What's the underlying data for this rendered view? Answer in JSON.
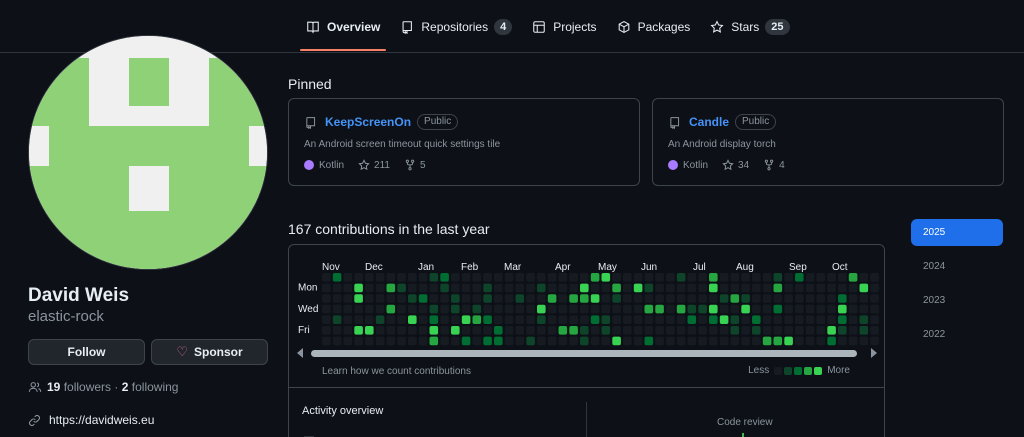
{
  "nav": {
    "tabs": [
      {
        "label": "Overview",
        "icon": "book-icon",
        "active": true
      },
      {
        "label": "Repositories",
        "icon": "repo-icon",
        "count": "4"
      },
      {
        "label": "Projects",
        "icon": "table-icon"
      },
      {
        "label": "Packages",
        "icon": "package-icon"
      },
      {
        "label": "Stars",
        "icon": "star-icon",
        "count": "25"
      }
    ]
  },
  "profile": {
    "name": "David Weis",
    "login": "elastic-rock",
    "follow_label": "Follow",
    "sponsor_label": "Sponsor",
    "followers_count": "19",
    "followers_label": "followers",
    "separator": "·",
    "following_count": "2",
    "following_label": "following",
    "website": "https://davidweis.eu",
    "avatar_colors": {
      "fg": "#8fd177",
      "bg": "#f0f0f0"
    }
  },
  "pinned": {
    "title": "Pinned",
    "repos": [
      {
        "name": "KeepScreenOn",
        "visibility": "Public",
        "description": "An Android screen timeout quick settings tile",
        "language": "Kotlin",
        "language_color": "#a97bff",
        "stars": "211",
        "forks": "5"
      },
      {
        "name": "Candle",
        "visibility": "Public",
        "description": "An Android display torch",
        "language": "Kotlin",
        "language_color": "#a97bff",
        "stars": "34",
        "forks": "4"
      }
    ]
  },
  "contributions": {
    "title": "167 contributions in the last year",
    "months": [
      "Nov",
      "Dec",
      "Jan",
      "Feb",
      "Mar",
      "Apr",
      "May",
      "Jun",
      "Jul",
      "Aug",
      "Sep",
      "Oct"
    ],
    "days": [
      "Mon",
      "Wed",
      "Fri"
    ],
    "learn_label": "Learn how we count contributions",
    "legend_less": "Less",
    "legend_more": "More",
    "level_colors": [
      "#161b22",
      "#0e4429",
      "#006d32",
      "#26a641",
      "#39d353"
    ]
  },
  "activity": {
    "title": "Activity overview",
    "code_review_label": "Code review"
  },
  "years": [
    "2025",
    "2024",
    "2023",
    "2022"
  ],
  "active_year": "2025"
}
